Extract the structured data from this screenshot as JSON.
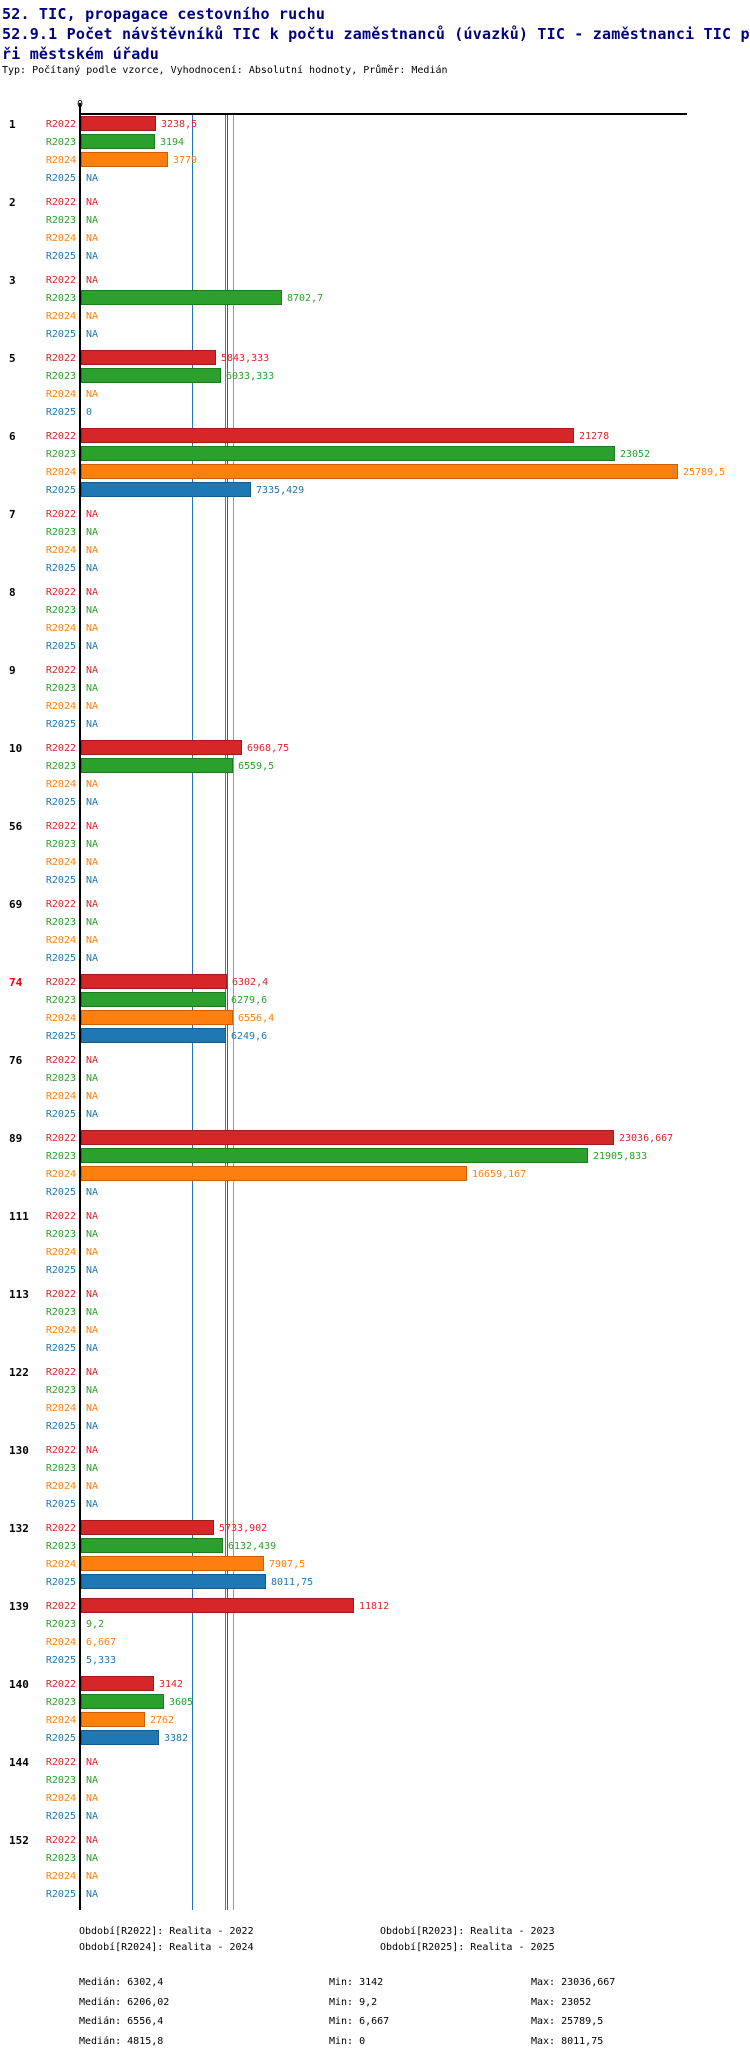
{
  "header": {
    "suite_title": "52. TIC, propagace cestovního ruchu",
    "indicator_title": "52.9.1 Počet návštěvníků TIC k počtu zaměstnanců (úvazků) TIC - zaměstnanci TIC při městském úřadu",
    "meta_line": "Typ: Počítaný podle vzorce, Vyhodnocení: Absolutní hodnoty, Průměr: Medián"
  },
  "colors": {
    "title": "#000080",
    "highlight_group": "#ee0000",
    "axis": "#000000"
  },
  "series_meta": [
    {
      "key": "R2022",
      "label": "R2022",
      "color": "#d62728",
      "border": "#9e1c1d",
      "legend_label": "Období[R2022]: Realita - 2022",
      "median_stat": "Medián: 6302,4",
      "min_stat": "Min: 3142",
      "max_stat": "Max: 23036,667"
    },
    {
      "key": "R2023",
      "label": "R2023",
      "color": "#2ca02c",
      "border": "#1e7a1e",
      "legend_label": "Období[R2023]: Realita - 2023",
      "median_stat": "Medián: 6206,02",
      "min_stat": "Min: 9,2",
      "max_stat": "Max: 23052"
    },
    {
      "key": "R2024",
      "label": "R2024",
      "color": "#ff7f0e",
      "border": "#c96007",
      "legend_label": "Období[R2024]: Realita - 2024",
      "median_stat": "Medián: 6556,4",
      "min_stat": "Min: 6,667",
      "max_stat": "Max: 25789,5"
    },
    {
      "key": "R2025",
      "label": "R2025",
      "color": "#1f77b4",
      "border": "#155a8a",
      "legend_label": "Období[R2025]: Realita - 2025",
      "median_stat": "Medián: 4815,8",
      "min_stat": "Min: 0",
      "max_stat": "Max: 8011,75"
    }
  ],
  "chart_data": {
    "type": "bar",
    "orientation": "horizontal",
    "na_text": "NA",
    "x_axis": {
      "min": 0,
      "tick_labels": [
        "0"
      ],
      "approx_max": 26200
    },
    "series_order": [
      "R2022",
      "R2023",
      "R2024",
      "R2025"
    ],
    "medians": {
      "R2022": 6302.4,
      "R2023": 6206.02,
      "R2024": 6556.4,
      "R2025": 4815.8
    },
    "mins": {
      "R2022": 3142,
      "R2023": 9.2,
      "R2024": 6.667,
      "R2025": 0
    },
    "maxs": {
      "R2022": 23036.667,
      "R2023": 23052,
      "R2024": 25789.5,
      "R2025": 8011.75
    },
    "groups": [
      {
        "id": "1",
        "highlight": false,
        "values": [
          "3238,5",
          "3194",
          "3779",
          "NA"
        ]
      },
      {
        "id": "2",
        "highlight": false,
        "values": [
          "NA",
          "NA",
          "NA",
          "NA"
        ]
      },
      {
        "id": "3",
        "highlight": false,
        "values": [
          "NA",
          "8702,7",
          "NA",
          "NA"
        ]
      },
      {
        "id": "5",
        "highlight": false,
        "values": [
          "5843,333",
          "6033,333",
          "NA",
          "0"
        ]
      },
      {
        "id": "6",
        "highlight": false,
        "values": [
          "21278",
          "23052",
          "25789,5",
          "7335,429"
        ]
      },
      {
        "id": "7",
        "highlight": false,
        "values": [
          "NA",
          "NA",
          "NA",
          "NA"
        ]
      },
      {
        "id": "8",
        "highlight": false,
        "values": [
          "NA",
          "NA",
          "NA",
          "NA"
        ]
      },
      {
        "id": "9",
        "highlight": false,
        "values": [
          "NA",
          "NA",
          "NA",
          "NA"
        ]
      },
      {
        "id": "10",
        "highlight": false,
        "values": [
          "6968,75",
          "6559,5",
          "NA",
          "NA"
        ]
      },
      {
        "id": "56",
        "highlight": false,
        "values": [
          "NA",
          "NA",
          "NA",
          "NA"
        ]
      },
      {
        "id": "69",
        "highlight": false,
        "values": [
          "NA",
          "NA",
          "NA",
          "NA"
        ]
      },
      {
        "id": "74",
        "highlight": true,
        "values": [
          "6302,4",
          "6279,6",
          "6556,4",
          "6249,6"
        ]
      },
      {
        "id": "76",
        "highlight": false,
        "values": [
          "NA",
          "NA",
          "NA",
          "NA"
        ]
      },
      {
        "id": "89",
        "highlight": false,
        "values": [
          "23036,667",
          "21905,833",
          "16659,167",
          "NA"
        ]
      },
      {
        "id": "111",
        "highlight": false,
        "values": [
          "NA",
          "NA",
          "NA",
          "NA"
        ]
      },
      {
        "id": "113",
        "highlight": false,
        "values": [
          "NA",
          "NA",
          "NA",
          "NA"
        ]
      },
      {
        "id": "122",
        "highlight": false,
        "values": [
          "NA",
          "NA",
          "NA",
          "NA"
        ]
      },
      {
        "id": "130",
        "highlight": false,
        "values": [
          "NA",
          "NA",
          "NA",
          "NA"
        ]
      },
      {
        "id": "132",
        "highlight": false,
        "values": [
          "5733,902",
          "6132,439",
          "7907,5",
          "8011,75"
        ]
      },
      {
        "id": "139",
        "highlight": false,
        "values": [
          "11812",
          "9,2",
          "6,667",
          "5,333"
        ]
      },
      {
        "id": "140",
        "highlight": false,
        "values": [
          "3142",
          "3605",
          "2762",
          "3382"
        ]
      },
      {
        "id": "144",
        "highlight": false,
        "values": [
          "NA",
          "NA",
          "NA",
          "NA"
        ]
      },
      {
        "id": "152",
        "highlight": false,
        "values": [
          "NA",
          "NA",
          "NA",
          "NA"
        ]
      }
    ]
  }
}
